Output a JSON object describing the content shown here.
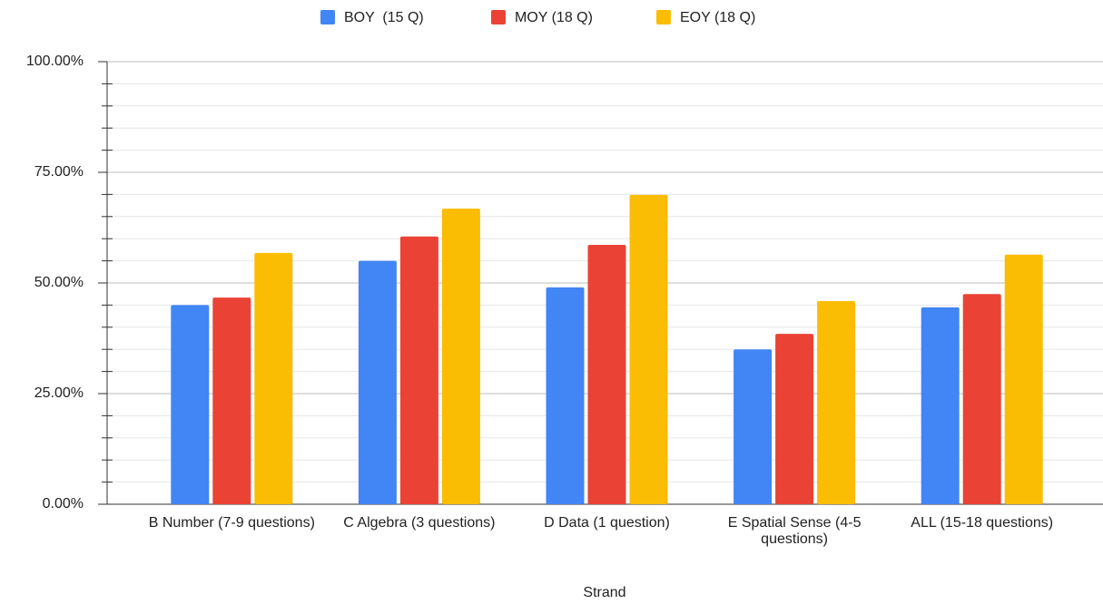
{
  "chart_data": {
    "type": "bar",
    "x_label": "Strand",
    "categories": [
      "B Number (7-9 questions)",
      "C Algebra (3 questions)",
      "D Data (1 question)",
      "E Spatial Sense (4-5 questions)",
      "ALL (15-18 questions)"
    ],
    "series": [
      {
        "name": "BOY  (15 Q)",
        "color": "#4285f4",
        "values": [
          45,
          55,
          49,
          35,
          44.5
        ]
      },
      {
        "name": "MOY (18 Q)",
        "color": "#ea4335",
        "values": [
          46.7,
          60.5,
          58.6,
          38.5,
          47.5
        ]
      },
      {
        "name": "EOY (18 Q)",
        "color": "#fbbc04",
        "values": [
          56.8,
          66.8,
          69.9,
          45.9,
          56.4
        ]
      }
    ],
    "ylim": [
      0,
      100
    ],
    "yticks": [
      {
        "value": 0,
        "label": "0.00%"
      },
      {
        "value": 25,
        "label": "25.00%"
      },
      {
        "value": 50,
        "label": "50.00%"
      },
      {
        "value": 75,
        "label": "75.00%"
      },
      {
        "value": 100,
        "label": "100.00%"
      }
    ],
    "y_minor_ticks": [
      5,
      10,
      15,
      20,
      30,
      35,
      40,
      45,
      55,
      60,
      65,
      70,
      80,
      85,
      90,
      95
    ],
    "grid": true,
    "legend": "top"
  }
}
